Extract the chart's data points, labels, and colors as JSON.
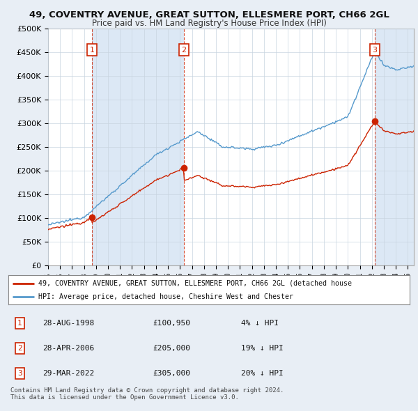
{
  "title": "49, COVENTRY AVENUE, GREAT SUTTON, ELLESMERE PORT, CH66 2GL",
  "subtitle": "Price paid vs. HM Land Registry's House Price Index (HPI)",
  "ylim": [
    0,
    500000
  ],
  "yticks": [
    0,
    50000,
    100000,
    150000,
    200000,
    250000,
    300000,
    350000,
    400000,
    450000,
    500000
  ],
  "ytick_labels": [
    "£0",
    "£50K",
    "£100K",
    "£150K",
    "£200K",
    "£250K",
    "£300K",
    "£350K",
    "£400K",
    "£450K",
    "£500K"
  ],
  "fig_bg_color": "#e8eef5",
  "plot_bg_color": "#ffffff",
  "shade_color": "#dce8f5",
  "grid_color": "#c8d4e0",
  "sale_label_color": "#cc0000",
  "hpi_line_color": "#5599cc",
  "price_line_color": "#cc2200",
  "legend_entries": [
    "49, COVENTRY AVENUE, GREAT SUTTON, ELLESMERE PORT, CH66 2GL (detached house",
    "HPI: Average price, detached house, Cheshire West and Chester"
  ],
  "table_entries": [
    {
      "label": "1",
      "date": "28-AUG-1998",
      "price": "£100,950",
      "hpi": "4% ↓ HPI"
    },
    {
      "label": "2",
      "date": "28-APR-2006",
      "price": "£205,000",
      "hpi": "19% ↓ HPI"
    },
    {
      "label": "3",
      "date": "29-MAR-2022",
      "price": "£305,000",
      "hpi": "20% ↓ HPI"
    }
  ],
  "footer": "Contains HM Land Registry data © Crown copyright and database right 2024.\nThis data is licensed under the Open Government Licence v3.0.",
  "xstart": 1995.0,
  "xend": 2025.5,
  "sale_years": [
    1998.655,
    2006.322,
    2022.24
  ],
  "sale_prices": [
    100950,
    205000,
    305000
  ],
  "sale_labels": [
    "1",
    "2",
    "3"
  ]
}
